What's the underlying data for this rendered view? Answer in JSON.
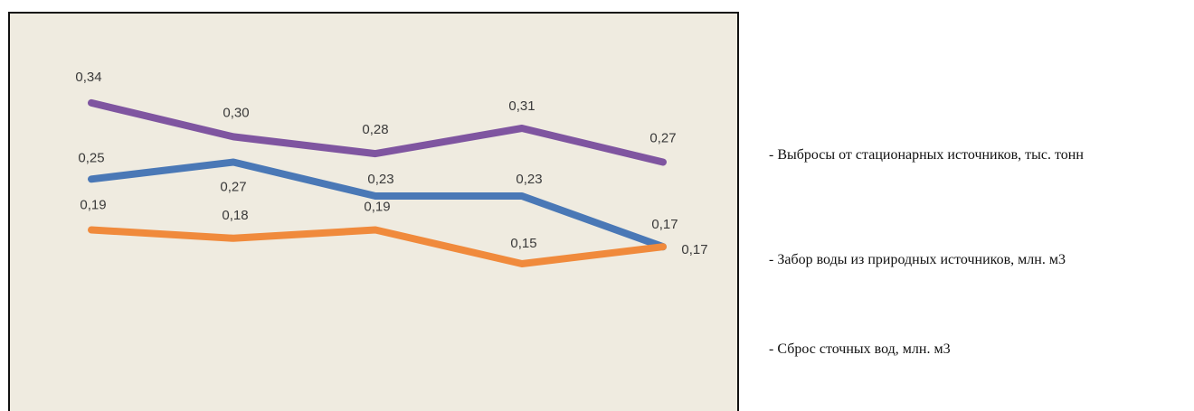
{
  "chart_data": {
    "type": "line",
    "categories": [
      "",
      "",
      "",
      "",
      ""
    ],
    "series": [
      {
        "name": "- Выбросы от стационарных источников, тыс. тонн",
        "color": "#7f55a0",
        "values": [
          0.34,
          0.3,
          0.28,
          0.31,
          0.27
        ],
        "labels": [
          "0,34",
          "0,30",
          "0,28",
          "0,31",
          "0,27"
        ]
      },
      {
        "name": "- Забор воды из  природных источников, млн. м3",
        "color": "#4a78b6",
        "values": [
          0.25,
          0.27,
          0.23,
          0.23,
          0.17
        ],
        "labels": [
          "0,25",
          "0,27",
          "0,23",
          "0,23",
          "0,17"
        ]
      },
      {
        "name": "- Сброс сточных вод, млн. м3",
        "color": "#f08a3c",
        "values": [
          0.19,
          0.18,
          0.19,
          0.15,
          0.17
        ],
        "labels": [
          "0,19",
          "0,18",
          "0,19",
          "0,15",
          "0,17"
        ]
      }
    ]
  }
}
